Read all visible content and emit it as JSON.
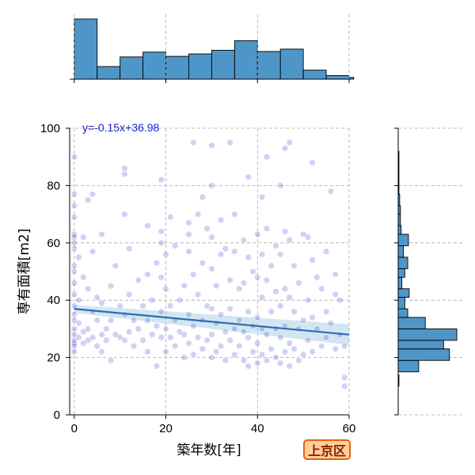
{
  "chart_data": {
    "type": "scatter",
    "xlabel": "築年数[年]",
    "ylabel": "専有面積[m2]",
    "xlim": [
      -1,
      60
    ],
    "ylim": [
      0,
      100
    ],
    "x_ticks": [
      0,
      20,
      40,
      60
    ],
    "y_ticks": [
      0,
      20,
      40,
      60,
      80,
      100
    ],
    "grid": true,
    "regression": {
      "label": "y=-0.15x+36.98",
      "slope": -0.15,
      "intercept": 36.98
    },
    "points": [
      [
        0,
        90
      ],
      [
        0,
        77
      ],
      [
        0,
        73
      ],
      [
        0,
        69
      ],
      [
        0,
        63
      ],
      [
        0,
        62
      ],
      [
        0,
        60
      ],
      [
        0,
        58
      ],
      [
        0,
        52
      ],
      [
        0,
        50
      ],
      [
        0,
        46
      ],
      [
        0,
        42
      ],
      [
        0,
        38
      ],
      [
        0,
        35
      ],
      [
        0,
        33
      ],
      [
        0,
        30
      ],
      [
        0,
        28
      ],
      [
        0,
        26
      ],
      [
        0,
        25
      ],
      [
        0,
        24
      ],
      [
        0,
        22
      ],
      [
        1,
        55
      ],
      [
        1,
        40
      ],
      [
        1,
        32
      ],
      [
        1,
        27
      ],
      [
        2,
        62
      ],
      [
        2,
        48
      ],
      [
        2,
        29
      ],
      [
        2,
        25
      ],
      [
        3,
        75
      ],
      [
        3,
        44
      ],
      [
        3,
        30
      ],
      [
        3,
        26
      ],
      [
        4,
        77
      ],
      [
        4,
        57
      ],
      [
        4,
        36
      ],
      [
        4,
        27
      ],
      [
        5,
        41
      ],
      [
        5,
        33
      ],
      [
        5,
        24
      ],
      [
        6,
        63
      ],
      [
        6,
        39
      ],
      [
        6,
        28
      ],
      [
        6,
        22
      ],
      [
        7,
        30
      ],
      [
        7,
        26
      ],
      [
        8,
        45
      ],
      [
        8,
        33
      ],
      [
        8,
        19
      ],
      [
        9,
        52
      ],
      [
        9,
        28
      ],
      [
        10,
        38
      ],
      [
        10,
        27
      ],
      [
        11,
        86
      ],
      [
        11,
        84
      ],
      [
        11,
        70
      ],
      [
        11,
        35
      ],
      [
        11,
        26
      ],
      [
        12,
        58
      ],
      [
        12,
        42
      ],
      [
        12,
        29
      ],
      [
        13,
        33
      ],
      [
        13,
        24
      ],
      [
        14,
        47
      ],
      [
        14,
        30
      ],
      [
        15,
        38
      ],
      [
        15,
        26
      ],
      [
        16,
        66
      ],
      [
        16,
        49
      ],
      [
        16,
        33
      ],
      [
        16,
        22
      ],
      [
        17,
        28
      ],
      [
        17,
        40
      ],
      [
        18,
        53
      ],
      [
        18,
        31
      ],
      [
        18,
        17
      ],
      [
        19,
        82
      ],
      [
        19,
        64
      ],
      [
        19,
        60
      ],
      [
        19,
        48
      ],
      [
        19,
        36
      ],
      [
        19,
        27
      ],
      [
        20,
        56
      ],
      [
        20,
        44
      ],
      [
        20,
        30
      ],
      [
        20,
        22
      ],
      [
        21,
        69
      ],
      [
        21,
        38
      ],
      [
        21,
        27
      ],
      [
        22,
        59
      ],
      [
        22,
        33
      ],
      [
        22,
        24
      ],
      [
        23,
        40
      ],
      [
        23,
        29
      ],
      [
        24,
        45
      ],
      [
        24,
        28
      ],
      [
        24,
        20
      ],
      [
        25,
        67
      ],
      [
        25,
        63
      ],
      [
        25,
        57
      ],
      [
        25,
        35
      ],
      [
        25,
        25
      ],
      [
        26,
        95
      ],
      [
        26,
        49
      ],
      [
        26,
        31
      ],
      [
        26,
        21
      ],
      [
        27,
        70
      ],
      [
        27,
        42
      ],
      [
        27,
        27
      ],
      [
        28,
        76
      ],
      [
        28,
        53
      ],
      [
        28,
        33
      ],
      [
        28,
        23
      ],
      [
        29,
        65
      ],
      [
        29,
        38
      ],
      [
        29,
        26
      ],
      [
        30,
        94
      ],
      [
        30,
        80
      ],
      [
        30,
        62
      ],
      [
        30,
        51
      ],
      [
        30,
        37
      ],
      [
        30,
        28
      ],
      [
        30,
        20
      ],
      [
        31,
        45
      ],
      [
        31,
        32
      ],
      [
        31,
        22
      ],
      [
        32,
        68
      ],
      [
        32,
        56
      ],
      [
        32,
        35
      ],
      [
        32,
        24
      ],
      [
        33,
        58
      ],
      [
        33,
        29
      ],
      [
        33,
        19
      ],
      [
        34,
        95
      ],
      [
        34,
        47
      ],
      [
        34,
        37
      ],
      [
        34,
        26
      ],
      [
        35,
        70
      ],
      [
        35,
        57
      ],
      [
        35,
        30
      ],
      [
        35,
        21
      ],
      [
        36,
        44
      ],
      [
        36,
        33
      ],
      [
        36,
        24
      ],
      [
        37,
        61
      ],
      [
        37,
        46
      ],
      [
        37,
        29
      ],
      [
        37,
        19
      ],
      [
        38,
        83
      ],
      [
        38,
        55
      ],
      [
        38,
        36
      ],
      [
        38,
        27
      ],
      [
        38,
        17
      ],
      [
        39,
        50
      ],
      [
        39,
        31
      ],
      [
        39,
        22
      ],
      [
        40,
        63
      ],
      [
        40,
        48
      ],
      [
        40,
        34
      ],
      [
        40,
        25
      ],
      [
        40,
        18
      ],
      [
        41,
        76
      ],
      [
        41,
        56
      ],
      [
        41,
        41
      ],
      [
        41,
        30
      ],
      [
        41,
        21
      ],
      [
        42,
        90
      ],
      [
        42,
        65
      ],
      [
        42,
        47
      ],
      [
        42,
        28
      ],
      [
        42,
        19
      ],
      [
        43,
        52
      ],
      [
        43,
        36
      ],
      [
        43,
        23
      ],
      [
        44,
        59
      ],
      [
        44,
        43
      ],
      [
        44,
        30
      ],
      [
        44,
        20
      ],
      [
        45,
        80
      ],
      [
        45,
        56
      ],
      [
        45,
        38
      ],
      [
        45,
        27
      ],
      [
        45,
        18
      ],
      [
        46,
        93
      ],
      [
        46,
        64
      ],
      [
        46,
        44
      ],
      [
        46,
        31
      ],
      [
        46,
        22
      ],
      [
        47,
        95
      ],
      [
        47,
        61
      ],
      [
        47,
        41
      ],
      [
        47,
        25
      ],
      [
        47,
        17
      ],
      [
        48,
        52
      ],
      [
        48,
        36
      ],
      [
        48,
        23
      ],
      [
        49,
        46
      ],
      [
        49,
        30
      ],
      [
        49,
        19
      ],
      [
        50,
        63
      ],
      [
        50,
        33
      ],
      [
        50,
        21
      ],
      [
        51,
        62
      ],
      [
        51,
        40
      ],
      [
        51,
        26
      ],
      [
        52,
        88
      ],
      [
        52,
        54
      ],
      [
        52,
        34
      ],
      [
        52,
        22
      ],
      [
        53,
        48
      ],
      [
        53,
        30
      ],
      [
        54,
        44
      ],
      [
        54,
        24
      ],
      [
        55,
        57
      ],
      [
        55,
        36
      ],
      [
        55,
        27
      ],
      [
        56,
        78
      ],
      [
        56,
        32
      ],
      [
        57,
        49
      ],
      [
        57,
        42
      ],
      [
        57,
        23
      ],
      [
        58,
        40
      ],
      [
        58,
        28
      ],
      [
        59,
        13
      ],
      [
        59,
        10
      ],
      [
        59,
        24
      ]
    ],
    "x_hist": [
      {
        "range": [
          0,
          5
        ],
        "count": 100
      },
      {
        "range": [
          5,
          10
        ],
        "count": 21
      },
      {
        "range": [
          10,
          15
        ],
        "count": 37
      },
      {
        "range": [
          15,
          20
        ],
        "count": 45
      },
      {
        "range": [
          20,
          25
        ],
        "count": 38
      },
      {
        "range": [
          25,
          30
        ],
        "count": 42
      },
      {
        "range": [
          30,
          35
        ],
        "count": 48
      },
      {
        "range": [
          35,
          40
        ],
        "count": 64
      },
      {
        "range": [
          40,
          45
        ],
        "count": 46
      },
      {
        "range": [
          45,
          50
        ],
        "count": 50
      },
      {
        "range": [
          50,
          55
        ],
        "count": 15
      },
      {
        "range": [
          55,
          60
        ],
        "count": 6
      },
      {
        "range": [
          60,
          61
        ],
        "count": 3
      }
    ],
    "y_hist": [
      {
        "range": [
          10,
          14
        ],
        "count": 1
      },
      {
        "range": [
          15,
          19
        ],
        "count": 28
      },
      {
        "range": [
          19,
          23
        ],
        "count": 70
      },
      {
        "range": [
          23,
          26
        ],
        "count": 62
      },
      {
        "range": [
          26,
          30
        ],
        "count": 80
      },
      {
        "range": [
          30,
          34
        ],
        "count": 37
      },
      {
        "range": [
          34,
          37
        ],
        "count": 13
      },
      {
        "range": [
          37,
          41
        ],
        "count": 9
      },
      {
        "range": [
          41,
          44
        ],
        "count": 15
      },
      {
        "range": [
          44,
          48
        ],
        "count": 5
      },
      {
        "range": [
          48,
          51
        ],
        "count": 9
      },
      {
        "range": [
          51,
          55
        ],
        "count": 13
      },
      {
        "range": [
          55,
          59
        ],
        "count": 7
      },
      {
        "range": [
          59,
          63
        ],
        "count": 14
      },
      {
        "range": [
          63,
          66
        ],
        "count": 4
      },
      {
        "range": [
          66,
          70
        ],
        "count": 3
      },
      {
        "range": [
          70,
          73
        ],
        "count": 3
      },
      {
        "range": [
          73,
          77
        ],
        "count": 2
      },
      {
        "range": [
          77,
          80
        ],
        "count": 1
      },
      {
        "range": [
          80,
          92
        ],
        "count": 1
      }
    ]
  },
  "colors": {
    "point": "#2a2fc9",
    "hist": "#4f96c8",
    "regression": "#2a6fad",
    "annotation": "#1a22c8",
    "grid": "#aaaaaa",
    "badge_fill": "#ffd09a",
    "badge_border": "#e8600e",
    "badge_text": "#8a1a00"
  },
  "badge_label": "上京区"
}
